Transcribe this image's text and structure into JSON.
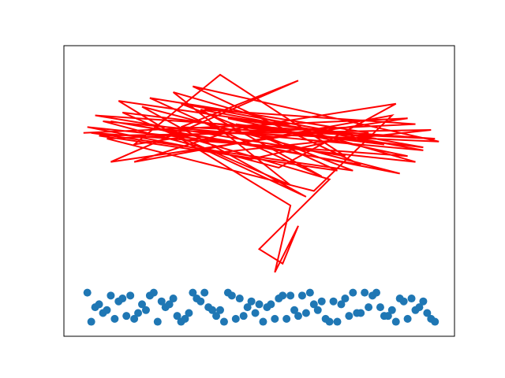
{
  "chart_data": {
    "type": "line",
    "xlim": [
      0,
      100
    ],
    "ylim": [
      0,
      100
    ],
    "series": [
      {
        "type": "line",
        "color": "#ff0000",
        "x": [
          5,
          88,
          12,
          60,
          30,
          95,
          8,
          72,
          40,
          18,
          85,
          55,
          10,
          92,
          35,
          66,
          22,
          78,
          48,
          6,
          90,
          28,
          58,
          15,
          82,
          44,
          70,
          9,
          94,
          38,
          62,
          20,
          86,
          52,
          12,
          76,
          33,
          96,
          25,
          68,
          50,
          56,
          60,
          54,
          58,
          14,
          80,
          42,
          88,
          7,
          74,
          30,
          92,
          46,
          18,
          84,
          64,
          11,
          90,
          36
        ],
        "values": [
          70,
          75,
          60,
          88,
          72,
          68,
          76,
          62,
          90,
          66,
          80,
          58,
          74,
          64,
          78,
          55,
          82,
          70,
          61,
          72,
          60,
          84,
          52,
          77,
          66,
          73,
          57,
          69,
          71,
          63,
          48,
          79,
          56,
          65,
          74,
          59,
          86,
          67,
          71,
          54,
          30,
          25,
          38,
          22,
          45,
          81,
          68,
          75,
          62,
          70,
          57,
          80,
          65,
          72,
          60,
          76,
          50,
          68,
          73,
          78
        ]
      },
      {
        "type": "scatter",
        "color": "#1f77b4",
        "x": [
          6,
          10,
          14,
          18,
          22,
          26,
          30,
          34,
          38,
          42,
          46,
          50,
          54,
          58,
          62,
          66,
          70,
          74,
          78,
          82,
          86,
          90,
          94,
          8,
          12,
          16,
          20,
          24,
          28,
          32,
          36,
          40,
          44,
          48,
          52,
          56,
          60,
          64,
          68,
          72,
          76,
          80,
          84,
          88,
          92,
          7,
          11,
          15,
          19,
          23,
          27,
          31,
          35,
          39,
          43,
          47,
          51,
          55,
          59,
          63,
          67,
          71,
          75,
          79,
          83,
          87,
          91,
          95,
          9,
          13,
          17,
          21,
          25,
          29,
          33,
          37,
          41,
          45,
          49,
          53,
          57,
          61,
          65,
          69,
          73,
          77,
          81,
          85,
          89,
          93
        ],
        "values": [
          15,
          8,
          12,
          6,
          14,
          10,
          5,
          13,
          9,
          15,
          7,
          11,
          6,
          14,
          8,
          12,
          5,
          15,
          10,
          7,
          13,
          9,
          6,
          10,
          14,
          7,
          11,
          5,
          13,
          8,
          15,
          9,
          6,
          12,
          10,
          14,
          7,
          11,
          5,
          13,
          8,
          15,
          9,
          6,
          12,
          5,
          9,
          13,
          8,
          15,
          11,
          6,
          12,
          7,
          14,
          10,
          5,
          13,
          9,
          15,
          6,
          11,
          8,
          14,
          7,
          12,
          10,
          5,
          11,
          6,
          14,
          9,
          12,
          7,
          15,
          10,
          5,
          13,
          8,
          11,
          6,
          14,
          9,
          12,
          7,
          15,
          10,
          5,
          13,
          8
        ]
      }
    ]
  }
}
